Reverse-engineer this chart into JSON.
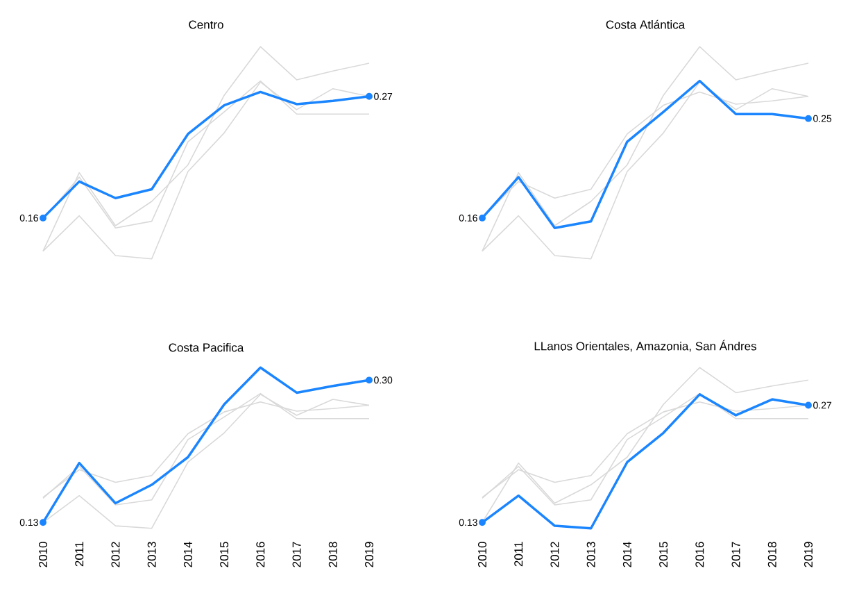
{
  "chart_data": [
    {
      "type": "line",
      "title": "Centro",
      "categories": [
        "2010",
        "2011",
        "2012",
        "2013",
        "2014",
        "2015",
        "2016",
        "2017",
        "2018",
        "2019"
      ],
      "tick_labels": false,
      "series": [
        {
          "color": "#d9d9d9",
          "values": [
            0.159,
            0.197,
            0.151,
            0.157,
            0.229,
            0.256,
            0.284,
            0.254,
            0.254,
            0.254
          ]
        },
        {
          "color": "#d9d9d9",
          "values": [
            0.13,
            0.201,
            0.153,
            0.175,
            0.208,
            0.271,
            0.315,
            0.285,
            0.293,
            0.3
          ]
        },
        {
          "color": "#d9d9d9",
          "values": [
            0.13,
            0.162,
            0.126,
            0.123,
            0.202,
            0.237,
            0.283,
            0.258,
            0.277,
            0.27
          ]
        },
        {
          "color": "#1a85ff",
          "values": [
            0.16,
            0.193,
            0.178,
            0.186,
            0.236,
            0.262,
            0.274,
            0.263,
            0.266,
            0.27
          ],
          "value_labels": [
            "0.16",
            null,
            null,
            null,
            null,
            null,
            null,
            null,
            null,
            "0.27"
          ]
        }
      ]
    },
    {
      "type": "line",
      "title": "Costa Atlántica",
      "categories": [
        "2010",
        "2011",
        "2012",
        "2013",
        "2014",
        "2015",
        "2016",
        "2017",
        "2018",
        "2019"
      ],
      "tick_labels": false,
      "series": [
        {
          "color": "#d9d9d9",
          "values": [
            0.16,
            0.193,
            0.178,
            0.186,
            0.236,
            0.262,
            0.274,
            0.263,
            0.266,
            0.27
          ]
        },
        {
          "color": "#d9d9d9",
          "values": [
            0.13,
            0.201,
            0.153,
            0.175,
            0.208,
            0.271,
            0.315,
            0.285,
            0.293,
            0.3
          ]
        },
        {
          "color": "#d9d9d9",
          "values": [
            0.13,
            0.162,
            0.126,
            0.123,
            0.202,
            0.237,
            0.283,
            0.258,
            0.277,
            0.27
          ]
        },
        {
          "color": "#1a85ff",
          "values": [
            0.16,
            0.197,
            0.151,
            0.157,
            0.229,
            0.256,
            0.284,
            0.254,
            0.254,
            0.25
          ],
          "value_labels": [
            "0.16",
            null,
            null,
            null,
            null,
            null,
            null,
            null,
            null,
            "0.25"
          ]
        }
      ]
    },
    {
      "type": "line",
      "title": "Costa Pacifica",
      "categories": [
        "2010",
        "2011",
        "2012",
        "2013",
        "2014",
        "2015",
        "2016",
        "2017",
        "2018",
        "2019"
      ],
      "tick_labels": "x",
      "series": [
        {
          "color": "#d9d9d9",
          "values": [
            0.16,
            0.193,
            0.178,
            0.186,
            0.236,
            0.262,
            0.274,
            0.263,
            0.266,
            0.27
          ]
        },
        {
          "color": "#d9d9d9",
          "values": [
            0.159,
            0.197,
            0.151,
            0.157,
            0.229,
            0.256,
            0.284,
            0.254,
            0.254,
            0.254
          ]
        },
        {
          "color": "#d9d9d9",
          "values": [
            0.13,
            0.162,
            0.126,
            0.123,
            0.202,
            0.237,
            0.283,
            0.258,
            0.277,
            0.27
          ]
        },
        {
          "color": "#1a85ff",
          "values": [
            0.13,
            0.201,
            0.153,
            0.175,
            0.208,
            0.271,
            0.315,
            0.285,
            0.293,
            0.3
          ],
          "value_labels": [
            "0.13",
            null,
            null,
            null,
            null,
            null,
            null,
            null,
            null,
            "0.30"
          ]
        }
      ]
    },
    {
      "type": "line",
      "title": "LLanos Orientales, Amazonia, San Ándres",
      "categories": [
        "2010",
        "2011",
        "2012",
        "2013",
        "2014",
        "2015",
        "2016",
        "2017",
        "2018",
        "2019"
      ],
      "tick_labels": "x",
      "series": [
        {
          "color": "#d9d9d9",
          "values": [
            0.16,
            0.193,
            0.178,
            0.186,
            0.236,
            0.262,
            0.274,
            0.263,
            0.266,
            0.27
          ]
        },
        {
          "color": "#d9d9d9",
          "values": [
            0.159,
            0.197,
            0.151,
            0.157,
            0.229,
            0.256,
            0.284,
            0.254,
            0.254,
            0.254
          ]
        },
        {
          "color": "#d9d9d9",
          "values": [
            0.13,
            0.201,
            0.153,
            0.175,
            0.208,
            0.271,
            0.315,
            0.285,
            0.293,
            0.3
          ]
        },
        {
          "color": "#1a85ff",
          "values": [
            0.13,
            0.162,
            0.126,
            0.123,
            0.202,
            0.237,
            0.283,
            0.258,
            0.277,
            0.27
          ],
          "value_labels": [
            "0.13",
            null,
            null,
            null,
            null,
            null,
            null,
            null,
            null,
            "0.27"
          ]
        }
      ]
    }
  ]
}
